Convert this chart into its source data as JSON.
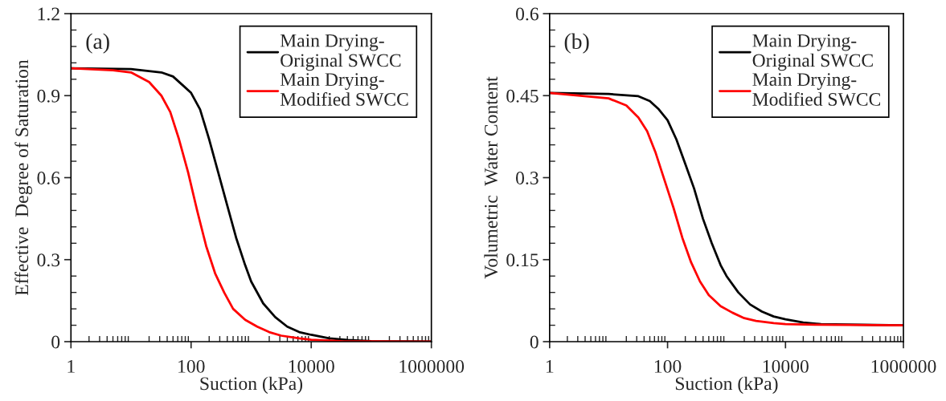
{
  "chart_data": [
    {
      "type": "line",
      "xlabel": "Suction (kPa)",
      "ylabel": "Effective  Degree of Saturation",
      "log": "x",
      "xlim": [
        1,
        1000000
      ],
      "xticks": [
        1,
        100,
        10000,
        1000000
      ],
      "ylim": [
        0,
        1.2
      ],
      "yticks": [
        0,
        0.3,
        0.6,
        0.9,
        1.2
      ],
      "grid": false,
      "legend": "top right",
      "annotations": [
        "(a)"
      ],
      "series": [
        {
          "name": "Main Drying-\nOriginal SWCC",
          "color": "#000000",
          "x": [
            1,
            10,
            32,
            50,
            71,
            100,
            141,
            200,
            282,
            398,
            562,
            794,
            1000,
            1585,
            2512,
            3981,
            6310,
            10000,
            20000,
            40000,
            100000,
            1000000
          ],
          "values": [
            1.0,
            0.997,
            0.985,
            0.97,
            0.94,
            0.91,
            0.85,
            0.74,
            0.62,
            0.5,
            0.38,
            0.28,
            0.22,
            0.14,
            0.09,
            0.055,
            0.035,
            0.025,
            0.012,
            0.006,
            0.002,
            0.0
          ]
        },
        {
          "name": "Main Drying-\nModified SWCC",
          "color": "#ff0000",
          "x": [
            1,
            5,
            10,
            20,
            32,
            45,
            63,
            89,
            126,
            178,
            251,
            355,
            501,
            794,
            1259,
            1995,
            3162,
            6310,
            10000,
            31623,
            1000000
          ],
          "values": [
            1.0,
            0.993,
            0.985,
            0.95,
            0.9,
            0.84,
            0.74,
            0.62,
            0.48,
            0.35,
            0.25,
            0.18,
            0.12,
            0.08,
            0.055,
            0.035,
            0.022,
            0.012,
            0.007,
            0.002,
            0.0
          ]
        }
      ]
    },
    {
      "type": "line",
      "xlabel": "Suction (kPa)",
      "ylabel": "Volumetric  Water Content",
      "log": "x",
      "xlim": [
        1,
        1000000
      ],
      "xticks": [
        1,
        100,
        10000,
        1000000
      ],
      "ylim": [
        0,
        0.6
      ],
      "yticks": [
        0,
        0.15,
        0.3,
        0.45,
        0.6
      ],
      "grid": false,
      "legend": "top right",
      "annotations": [
        "(b)"
      ],
      "series": [
        {
          "name": "Main Drying-\nOriginal SWCC",
          "color": "#000000",
          "x": [
            1,
            10,
            32,
            50,
            71,
            100,
            141,
            200,
            282,
            398,
            562,
            794,
            1000,
            1585,
            2512,
            3981,
            6310,
            10000,
            20000,
            40000,
            1000000
          ],
          "values": [
            0.455,
            0.453,
            0.449,
            0.44,
            0.425,
            0.405,
            0.37,
            0.325,
            0.28,
            0.225,
            0.18,
            0.14,
            0.12,
            0.09,
            0.068,
            0.055,
            0.046,
            0.041,
            0.035,
            0.032,
            0.03
          ]
        },
        {
          "name": "Main Drying-\nModified SWCC",
          "color": "#ff0000",
          "x": [
            1,
            10,
            20,
            32,
            45,
            63,
            89,
            126,
            178,
            251,
            355,
            501,
            794,
            1259,
            1995,
            3162,
            6310,
            10000,
            31623,
            1000000
          ],
          "values": [
            0.455,
            0.445,
            0.432,
            0.41,
            0.385,
            0.345,
            0.295,
            0.245,
            0.19,
            0.145,
            0.11,
            0.085,
            0.065,
            0.053,
            0.043,
            0.038,
            0.034,
            0.032,
            0.031,
            0.03
          ]
        }
      ]
    }
  ]
}
